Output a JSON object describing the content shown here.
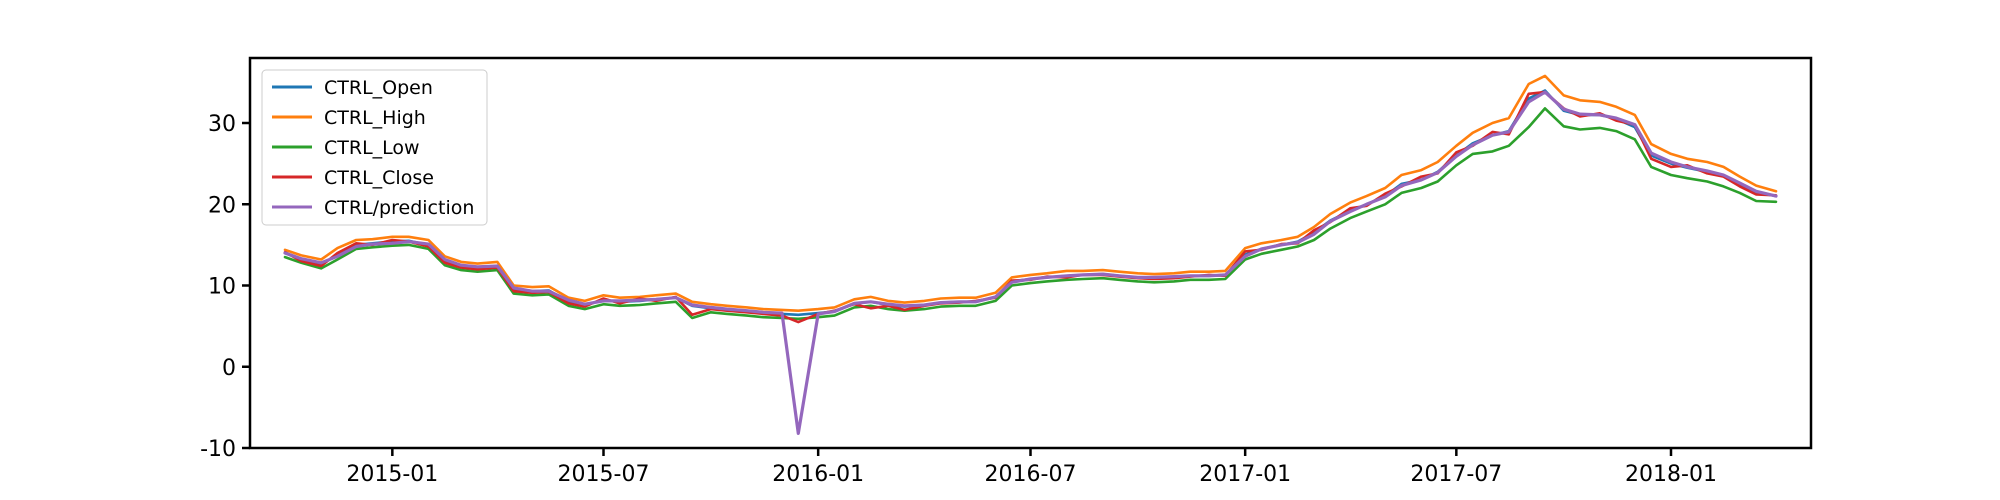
{
  "chart_data": {
    "type": "line",
    "title": "",
    "xlabel": "",
    "ylabel": "",
    "xlim": [
      "2014-09-01",
      "2018-05-01"
    ],
    "ylim": [
      -10,
      38
    ],
    "grid": false,
    "legend_position": "upper-left",
    "x_ticks": [
      {
        "date": "2015-01-01",
        "label": "2015-01"
      },
      {
        "date": "2015-07-01",
        "label": "2015-07"
      },
      {
        "date": "2016-01-01",
        "label": "2016-01"
      },
      {
        "date": "2016-07-01",
        "label": "2016-07"
      },
      {
        "date": "2017-01-01",
        "label": "2017-01"
      },
      {
        "date": "2017-07-01",
        "label": "2017-07"
      },
      {
        "date": "2018-01-01",
        "label": "2018-01"
      }
    ],
    "y_ticks": [
      {
        "value": -10,
        "label": "-10"
      },
      {
        "value": 0,
        "label": "0"
      },
      {
        "value": 10,
        "label": "10"
      },
      {
        "value": 20,
        "label": "20"
      },
      {
        "value": 30,
        "label": "30"
      }
    ],
    "x": [
      "2014-10-01",
      "2014-10-15",
      "2014-11-01",
      "2014-11-15",
      "2014-12-01",
      "2014-12-15",
      "2015-01-01",
      "2015-01-15",
      "2015-02-01",
      "2015-02-15",
      "2015-03-01",
      "2015-03-15",
      "2015-04-01",
      "2015-04-15",
      "2015-05-01",
      "2015-05-15",
      "2015-06-01",
      "2015-06-15",
      "2015-07-01",
      "2015-07-15",
      "2015-08-01",
      "2015-08-15",
      "2015-09-01",
      "2015-09-15",
      "2015-10-01",
      "2015-10-15",
      "2015-11-01",
      "2015-11-15",
      "2015-12-01",
      "2015-12-15",
      "2016-01-01",
      "2016-01-15",
      "2016-02-01",
      "2016-02-15",
      "2016-03-01",
      "2016-03-15",
      "2016-04-01",
      "2016-04-15",
      "2016-05-01",
      "2016-05-15",
      "2016-06-01",
      "2016-06-15",
      "2016-07-01",
      "2016-07-15",
      "2016-08-01",
      "2016-08-15",
      "2016-09-01",
      "2016-09-15",
      "2016-10-01",
      "2016-10-15",
      "2016-11-01",
      "2016-11-15",
      "2016-12-01",
      "2016-12-15",
      "2017-01-01",
      "2017-01-15",
      "2017-02-01",
      "2017-02-15",
      "2017-03-01",
      "2017-03-15",
      "2017-04-01",
      "2017-04-15",
      "2017-05-01",
      "2017-05-15",
      "2017-06-01",
      "2017-06-15",
      "2017-07-01",
      "2017-07-15",
      "2017-08-01",
      "2017-08-15",
      "2017-09-01",
      "2017-09-15",
      "2017-10-01",
      "2017-10-15",
      "2017-11-01",
      "2017-11-15",
      "2017-12-01",
      "2017-12-15",
      "2018-01-01",
      "2018-01-15",
      "2018-02-01",
      "2018-02-15",
      "2018-03-01",
      "2018-03-15",
      "2018-04-01"
    ],
    "series": [
      {
        "name": "CTRL_Open",
        "color": "#1f77b4",
        "values": [
          14.0,
          13.2,
          12.6,
          13.8,
          15.0,
          15.2,
          15.4,
          15.5,
          15.0,
          13.0,
          12.4,
          12.2,
          12.4,
          9.5,
          9.3,
          9.4,
          8.0,
          7.6,
          8.2,
          8.0,
          8.1,
          8.3,
          8.5,
          7.5,
          7.2,
          7.0,
          6.8,
          6.6,
          6.5,
          6.4,
          6.6,
          6.8,
          7.8,
          8.0,
          7.6,
          7.4,
          7.6,
          7.9,
          8.0,
          8.0,
          8.6,
          10.5,
          10.8,
          11.0,
          11.2,
          11.3,
          11.4,
          11.2,
          11.0,
          10.9,
          11.0,
          11.2,
          11.2,
          11.3,
          13.8,
          14.5,
          15.0,
          15.4,
          16.5,
          18.0,
          19.2,
          20.0,
          21.0,
          22.5,
          23.0,
          24.0,
          26.0,
          27.5,
          28.5,
          29.0,
          33.0,
          34.0,
          31.5,
          31.0,
          31.0,
          30.5,
          29.5,
          26.0,
          25.0,
          24.5,
          24.0,
          23.5,
          22.5,
          21.5,
          21.0
        ]
      },
      {
        "name": "CTRL_High",
        "color": "#ff7f0e",
        "values": [
          14.4,
          13.7,
          13.2,
          14.6,
          15.6,
          15.7,
          16.0,
          16.0,
          15.6,
          13.6,
          12.9,
          12.7,
          12.9,
          10.0,
          9.8,
          9.9,
          8.5,
          8.1,
          8.8,
          8.5,
          8.6,
          8.8,
          9.0,
          8.0,
          7.7,
          7.5,
          7.3,
          7.1,
          7.0,
          6.9,
          7.1,
          7.3,
          8.3,
          8.6,
          8.1,
          7.9,
          8.1,
          8.4,
          8.5,
          8.5,
          9.1,
          11.0,
          11.3,
          11.5,
          11.8,
          11.8,
          11.9,
          11.7,
          11.5,
          11.4,
          11.5,
          11.7,
          11.7,
          11.8,
          14.6,
          15.2,
          15.6,
          16.0,
          17.2,
          18.8,
          20.2,
          21.0,
          22.0,
          23.6,
          24.2,
          25.2,
          27.2,
          28.8,
          30.0,
          30.6,
          34.8,
          35.8,
          33.4,
          32.8,
          32.6,
          32.0,
          31.0,
          27.4,
          26.2,
          25.6,
          25.2,
          24.6,
          23.4,
          22.3,
          21.6
        ]
      },
      {
        "name": "CTRL_Low",
        "color": "#2ca02c",
        "values": [
          13.5,
          12.8,
          12.1,
          13.2,
          14.5,
          14.7,
          14.9,
          15.0,
          14.5,
          12.5,
          11.9,
          11.7,
          11.9,
          9.0,
          8.8,
          8.9,
          7.5,
          7.1,
          7.7,
          7.5,
          7.6,
          7.8,
          8.0,
          6.0,
          6.7,
          6.5,
          6.3,
          6.1,
          6.0,
          5.9,
          6.1,
          6.3,
          7.3,
          7.5,
          7.1,
          6.9,
          7.1,
          7.4,
          7.5,
          7.5,
          8.1,
          10.0,
          10.3,
          10.5,
          10.7,
          10.8,
          10.9,
          10.7,
          10.5,
          10.4,
          10.5,
          10.7,
          10.7,
          10.8,
          13.2,
          13.9,
          14.4,
          14.8,
          15.6,
          17.0,
          18.3,
          19.1,
          20.0,
          21.4,
          22.0,
          22.8,
          24.8,
          26.2,
          26.5,
          27.2,
          29.5,
          31.8,
          29.6,
          29.2,
          29.4,
          29.0,
          28.0,
          24.6,
          23.6,
          23.2,
          22.8,
          22.2,
          21.4,
          20.4,
          20.3
        ]
      },
      {
        "name": "CTRL_Close",
        "color": "#d62728",
        "values": [
          14.1,
          13.0,
          12.4,
          14.0,
          15.2,
          15.0,
          15.6,
          15.4,
          14.8,
          12.8,
          12.2,
          12.0,
          12.2,
          9.3,
          9.1,
          9.2,
          7.8,
          7.4,
          8.4,
          7.8,
          8.4,
          8.1,
          8.6,
          6.4,
          7.1,
          6.9,
          6.7,
          6.5,
          6.3,
          5.5,
          6.5,
          6.9,
          7.7,
          7.2,
          7.5,
          7.0,
          7.5,
          7.8,
          7.9,
          8.1,
          8.5,
          10.6,
          10.7,
          11.1,
          11.0,
          11.3,
          11.3,
          11.1,
          10.9,
          10.8,
          10.9,
          11.1,
          11.3,
          11.2,
          14.2,
          14.4,
          15.1,
          15.2,
          16.8,
          17.8,
          19.5,
          19.8,
          21.3,
          22.2,
          23.4,
          23.8,
          26.4,
          27.2,
          28.9,
          28.6,
          33.6,
          33.8,
          31.8,
          30.8,
          31.2,
          30.3,
          29.8,
          25.6,
          24.6,
          24.8,
          23.8,
          23.4,
          22.2,
          21.2,
          21.1
        ]
      },
      {
        "name": "CTRL/prediction",
        "color": "#9467bd",
        "values": [
          14.0,
          13.3,
          12.8,
          13.6,
          14.8,
          15.1,
          15.2,
          15.4,
          15.1,
          13.2,
          12.5,
          12.3,
          12.4,
          9.7,
          9.3,
          9.3,
          8.2,
          7.7,
          8.1,
          8.1,
          8.2,
          8.3,
          8.5,
          7.6,
          7.3,
          7.1,
          6.9,
          6.7,
          6.6,
          -8.2,
          6.5,
          6.8,
          7.8,
          8.0,
          7.7,
          7.5,
          7.6,
          7.9,
          8.0,
          8.0,
          8.6,
          10.4,
          10.8,
          11.0,
          11.2,
          11.3,
          11.4,
          11.2,
          11.0,
          11.0,
          11.1,
          11.2,
          11.2,
          11.3,
          13.6,
          14.5,
          15.0,
          15.3,
          16.3,
          17.9,
          19.1,
          20.0,
          20.9,
          22.3,
          23.0,
          23.9,
          25.9,
          27.3,
          28.5,
          28.9,
          32.6,
          33.8,
          31.7,
          31.1,
          31.0,
          30.6,
          29.8,
          26.3,
          25.2,
          24.6,
          24.1,
          23.6,
          22.6,
          21.6,
          21.0
        ]
      }
    ]
  }
}
